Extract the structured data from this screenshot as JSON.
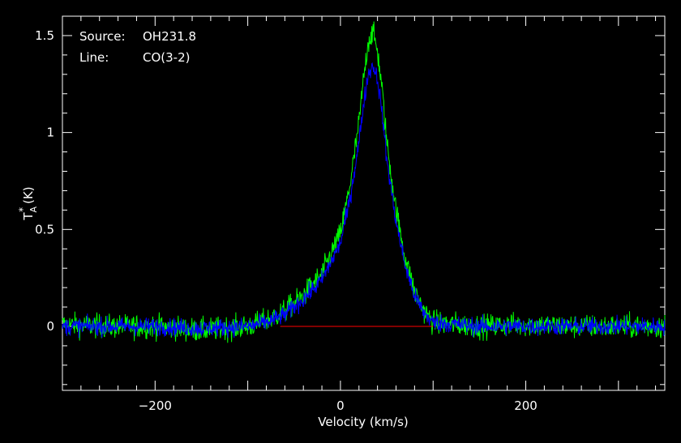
{
  "annotation": {
    "source_label": "Source:",
    "source_value": "OH231.8",
    "line_label": "Line:",
    "line_value": "CO(3-2)"
  },
  "chart_data": {
    "type": "line",
    "xlabel": "Velocity (km/s)",
    "ylabel": "T",
    "ylabel_sub": "A",
    "ylabel_sup": "*",
    "ylabel_unit": "(K)",
    "xlim": [
      -300,
      350
    ],
    "ylim": [
      -0.33,
      1.6
    ],
    "xticks": [
      -200,
      0,
      200
    ],
    "xtick_labels": [
      "−200",
      "0",
      "200"
    ],
    "yticks": [
      0,
      0.5,
      1,
      1.5
    ],
    "ytick_labels": [
      "0",
      "0.5",
      "1",
      "1.5"
    ],
    "grid": false,
    "background": "#000000",
    "series": [
      {
        "color": "#00ff00",
        "x": [
          -300,
          -250,
          -200,
          -150,
          -100,
          -80,
          -60,
          -40,
          -20,
          0,
          10,
          20,
          25,
          30,
          35,
          40,
          45,
          50,
          60,
          70,
          80,
          90,
          100,
          150,
          200,
          250,
          300,
          350
        ],
        "values": [
          0.01,
          0.0,
          0.0,
          -0.02,
          0.0,
          0.03,
          0.08,
          0.16,
          0.27,
          0.48,
          0.72,
          1.05,
          1.28,
          1.47,
          1.52,
          1.42,
          1.22,
          0.95,
          0.6,
          0.35,
          0.18,
          0.08,
          0.02,
          0.0,
          0.01,
          0.0,
          0.0,
          0.0
        ],
        "noise": 0.06
      },
      {
        "color": "#0000ff",
        "x": [
          -300,
          -250,
          -200,
          -150,
          -100,
          -80,
          -60,
          -40,
          -20,
          0,
          10,
          20,
          25,
          30,
          35,
          40,
          45,
          50,
          60,
          70,
          80,
          90,
          100,
          150,
          200,
          250,
          300,
          350
        ],
        "values": [
          0.0,
          0.0,
          0.0,
          -0.01,
          0.0,
          0.02,
          0.06,
          0.14,
          0.24,
          0.43,
          0.65,
          0.95,
          1.15,
          1.3,
          1.35,
          1.28,
          1.1,
          0.86,
          0.54,
          0.31,
          0.16,
          0.07,
          0.02,
          0.0,
          0.0,
          0.0,
          0.0,
          0.0
        ],
        "noise": 0.045
      }
    ],
    "baseline": {
      "color": "#ff0000",
      "x": [
        -65,
        100
      ],
      "y": 0
    }
  }
}
